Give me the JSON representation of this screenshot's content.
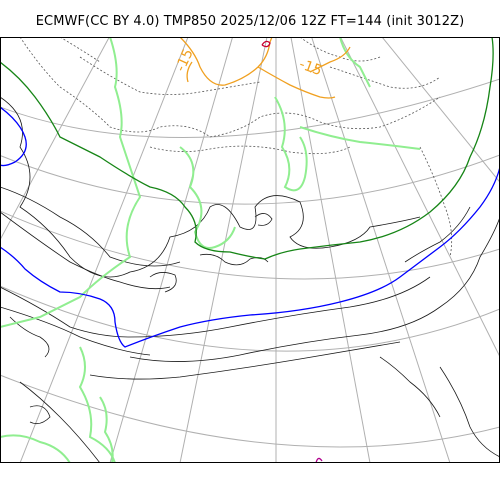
{
  "title": "ECMWF(CC BY 4.0) TMP850 2025/12/06 12Z FT=144 (init 3012Z)",
  "contour_labels": [
    {
      "text": "-15"
    },
    {
      "text": "-15"
    }
  ],
  "colors": {
    "background": "#ffffff",
    "coastline": "#1a1a1a",
    "graticule": "#b0b0b0",
    "contour_minus15": "#f0a020",
    "contour_minus30": "#c80032",
    "contour_light_green": "#90ee90",
    "contour_dark_green": "#168516",
    "contour_blue": "#0000ff",
    "contour_purple": "#b0008c",
    "contour_dotted": "#555555"
  },
  "icons": {
    "map": "weather-chart-icon"
  }
}
